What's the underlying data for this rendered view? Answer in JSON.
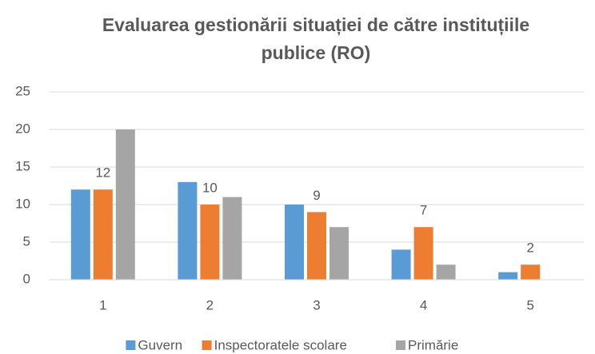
{
  "chart_data": {
    "type": "bar",
    "title": "Evaluarea gestionării situației de către instituțiile publice (RO)",
    "categories": [
      "1",
      "2",
      "3",
      "4",
      "5"
    ],
    "series": [
      {
        "name": "Guvern",
        "color": "#5b9bd5",
        "values": [
          12,
          13,
          10,
          4,
          1
        ]
      },
      {
        "name": "Inspectoratele scolare",
        "color": "#ed7d31",
        "values": [
          12,
          10,
          9,
          7,
          2
        ],
        "data_labels": true
      },
      {
        "name": "Primărie",
        "color": "#a5a5a5",
        "values": [
          20,
          11,
          7,
          2,
          0
        ]
      }
    ],
    "ylim": [
      0,
      25
    ],
    "yticks": [
      0,
      5,
      10,
      15,
      20,
      25
    ],
    "grid": true,
    "legend": "bottom"
  }
}
